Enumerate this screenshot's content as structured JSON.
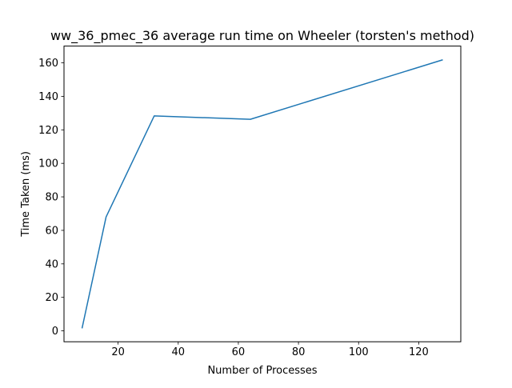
{
  "chart_data": {
    "type": "line",
    "title": "ww_36_pmec_36 average run time on Wheeler (torsten's method)",
    "xlabel": "Number of Processes",
    "ylabel": "Time Taken (ms)",
    "xlim": [
      2,
      134
    ],
    "ylim": [
      -6.5,
      170
    ],
    "xticks": [
      20,
      40,
      60,
      80,
      100,
      120
    ],
    "yticks": [
      0,
      20,
      40,
      60,
      80,
      100,
      120,
      140,
      160
    ],
    "grid": false,
    "series": [
      {
        "color": "#1f77b4",
        "x": [
          8,
          16,
          32,
          64,
          128
        ],
        "y": [
          1.5,
          68,
          128.3,
          126.3,
          161.8
        ]
      }
    ]
  }
}
